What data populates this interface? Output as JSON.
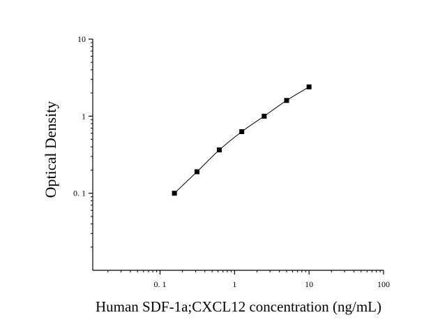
{
  "chart_data": {
    "type": "scatter",
    "title": "",
    "xlabel": "Human SDF-1a;CXCL12 concentration (ng/mL)",
    "ylabel": "Optical Density",
    "x_scale": "log",
    "y_scale": "log",
    "xlim": [
      0.0125,
      100
    ],
    "ylim": [
      0.01,
      10
    ],
    "x_ticks": [
      0.1,
      1,
      10,
      100
    ],
    "x_tick_labels": [
      "0. 1",
      "1",
      "10",
      "100"
    ],
    "y_ticks": [
      0.1,
      1,
      10
    ],
    "y_tick_labels": [
      "0. 1",
      "1",
      "10"
    ],
    "grid": false,
    "legend": "none",
    "series": [
      {
        "marker": "square",
        "color": "#000000",
        "fit_line": true,
        "x": [
          0.156,
          0.313,
          0.625,
          1.25,
          2.5,
          5,
          10
        ],
        "y": [
          0.1,
          0.19,
          0.365,
          0.63,
          1.0,
          1.6,
          2.4
        ]
      }
    ]
  }
}
